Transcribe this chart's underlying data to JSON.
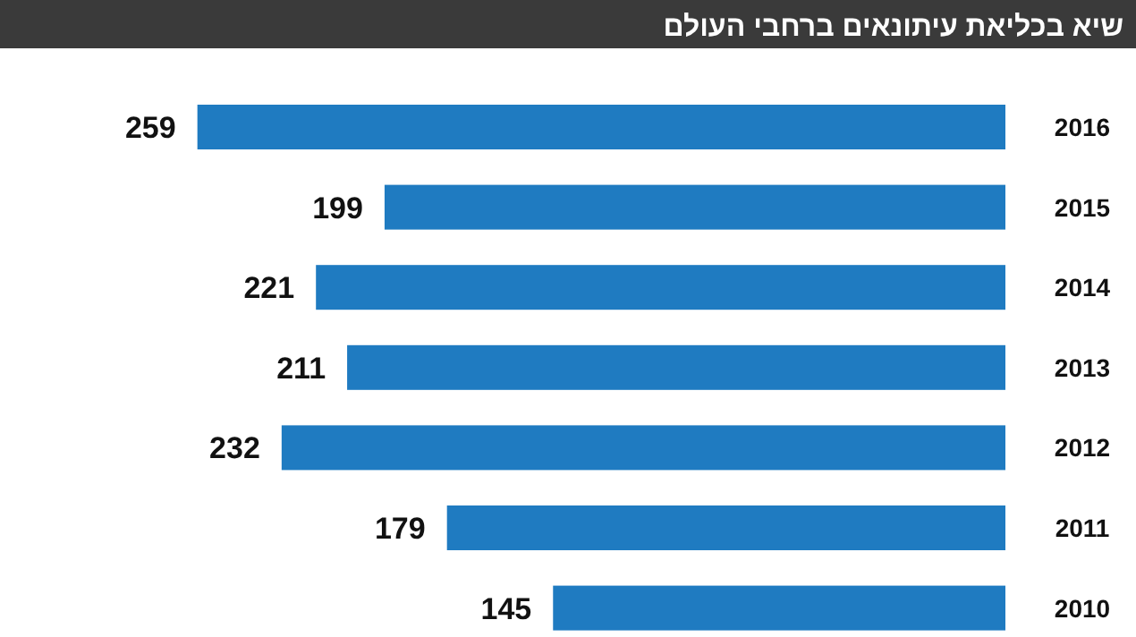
{
  "chart_data": {
    "type": "bar",
    "orientation": "horizontal",
    "title": "שיא בכליאת עיתונאים ברחבי העולם",
    "categories": [
      "2016",
      "2015",
      "2014",
      "2013",
      "2012",
      "2011",
      "2010"
    ],
    "values": [
      259,
      199,
      221,
      211,
      232,
      179,
      145
    ],
    "color": "#1f7bc1",
    "data_labels": true
  }
}
